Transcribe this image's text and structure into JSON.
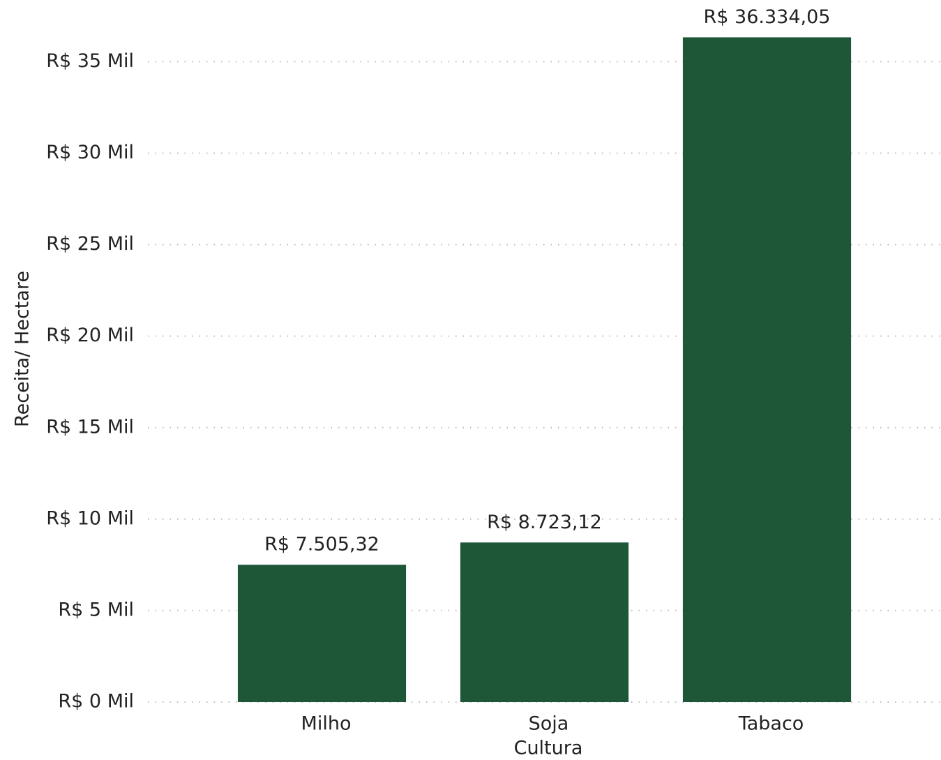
{
  "chart_data": {
    "type": "bar",
    "x_label": "Cultura",
    "y_label": "Receita/ Hectare",
    "categories": [
      "Milho",
      "Soja",
      "Tabaco"
    ],
    "values": [
      7505.32,
      8723.12,
      36334.05
    ],
    "value_labels": [
      "R$ 7.505,32",
      "R$ 8.723,12",
      "R$ 36.334,05"
    ],
    "color": "#1e5737",
    "ylim": [
      0,
      37000
    ],
    "yticks": [
      {
        "value": 0,
        "label": "R$ 0 Mil"
      },
      {
        "value": 5000,
        "label": "R$ 5 Mil"
      },
      {
        "value": 10000,
        "label": "R$ 10 Mil"
      },
      {
        "value": 15000,
        "label": "R$ 15 Mil"
      },
      {
        "value": 20000,
        "label": "R$ 20 Mil"
      },
      {
        "value": 25000,
        "label": "R$ 25 Mil"
      },
      {
        "value": 30000,
        "label": "R$ 30 Mil"
      },
      {
        "value": 35000,
        "label": "R$ 35 Mil"
      }
    ],
    "grid": true
  }
}
